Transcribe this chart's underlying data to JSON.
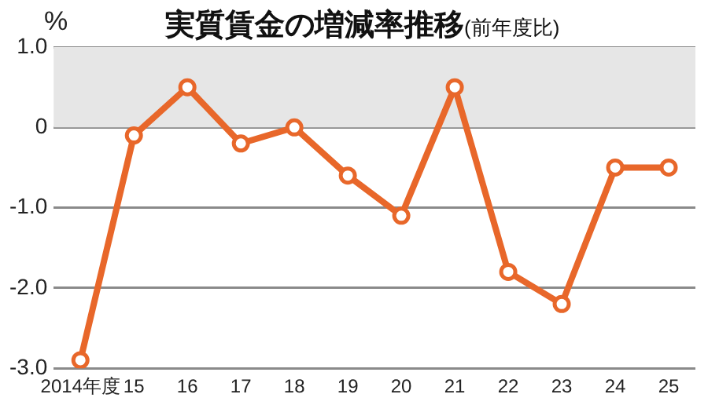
{
  "chart_data": {
    "type": "line",
    "title": "実質賃金の増減率推移",
    "subtitle": "(前年度比)",
    "ylabel": "%",
    "categories": [
      "2014年度",
      "15",
      "16",
      "17",
      "18",
      "19",
      "20",
      "21",
      "22",
      "23",
      "24",
      "25"
    ],
    "series": [
      {
        "color": "#e8672a",
        "values": [
          -2.9,
          -0.1,
          0.5,
          -0.2,
          0.0,
          -0.6,
          -1.1,
          0.5,
          -1.8,
          -2.2,
          -0.5,
          -0.5
        ]
      }
    ],
    "ylim": [
      -3,
      1
    ],
    "yticks": [
      {
        "value": 1,
        "label": "1.0"
      },
      0,
      {
        "value": -1,
        "label": "-1.0"
      },
      {
        "value": -2,
        "label": "-2.0"
      },
      {
        "value": -3,
        "label": "-3.0"
      }
    ],
    "bands": [
      {
        "axis": "y",
        "from": 0,
        "to": 1,
        "color": "#e6e6e6"
      }
    ],
    "grid": "y",
    "marker": "circle",
    "line_style": "solid",
    "legend": false
  }
}
